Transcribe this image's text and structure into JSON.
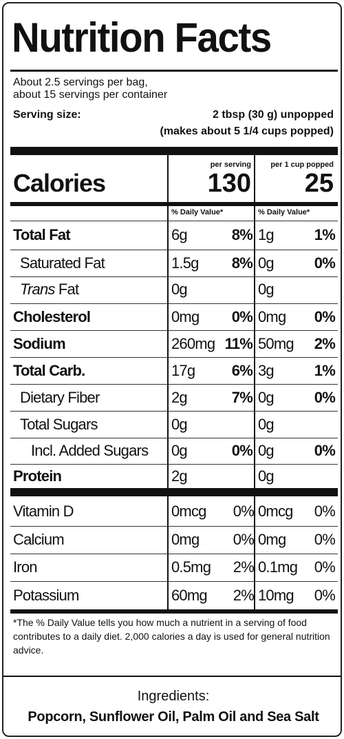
{
  "title": "Nutrition Facts",
  "servings_line1": "About 2.5 servings per bag,",
  "servings_line2": "about 15 servings per container",
  "serving_size_label": "Serving size:",
  "serving_size_value": "2 tbsp (30 g) unpopped",
  "serving_size_note": "(makes about 5 1/4 cups popped)",
  "calories": {
    "label": "Calories",
    "col1_head": "per serving",
    "col2_head": "per 1 cup popped",
    "col1_value": "130",
    "col2_value": "25",
    "dv_head1": "% Daily Value*",
    "dv_head2": "% Daily Value*"
  },
  "nutrients": [
    {
      "name": "Total Fat",
      "a": "6g",
      "ap": "8%",
      "b": "1g",
      "bp": "1%"
    },
    {
      "name": "Saturated Fat",
      "a": "1.5g",
      "ap": "8%",
      "b": "0g",
      "bp": "0%"
    },
    {
      "name_italic": "Trans",
      "name_rest": " Fat",
      "a": "0g",
      "ap": "",
      "b": "0g",
      "bp": ""
    },
    {
      "name": "Cholesterol",
      "a": "0mg",
      "ap": "0%",
      "b": "0mg",
      "bp": "0%"
    },
    {
      "name": "Sodium",
      "a": "260mg",
      "ap": "11%",
      "b": "50mg",
      "bp": "2%"
    },
    {
      "name": "Total Carb.",
      "a": "17g",
      "ap": "6%",
      "b": "3g",
      "bp": "1%"
    },
    {
      "name": "Dietary Fiber",
      "a": "2g",
      "ap": "7%",
      "b": "0g",
      "bp": "0%"
    },
    {
      "name": "Total Sugars",
      "a": "0g",
      "ap": "",
      "b": "0g",
      "bp": ""
    },
    {
      "name": "Incl. Added Sugars",
      "a": "0g",
      "ap": "0%",
      "b": "0g",
      "bp": "0%"
    },
    {
      "name": "Protein",
      "a": "2g",
      "ap": "",
      "b": "0g",
      "bp": ""
    }
  ],
  "vitamins": [
    {
      "name": "Vitamin D",
      "a": "0mcg",
      "ap": "0%",
      "b": "0mcg",
      "bp": "0%"
    },
    {
      "name": "Calcium",
      "a": "0mg",
      "ap": "0%",
      "b": "0mg",
      "bp": "0%"
    },
    {
      "name": "Iron",
      "a": "0.5mg",
      "ap": "2%",
      "b": "0.1mg",
      "bp": "0%"
    },
    {
      "name": "Potassium",
      "a": "60mg",
      "ap": "2%",
      "b": "10mg",
      "bp": "0%"
    }
  ],
  "footnote": "*The % Daily Value tells you how much a nutrient in a serving of food contributes to a daily diet. 2,000 calories a day is used for general nutrition advice.",
  "ingredients_title": "Ingredients:",
  "ingredients_list": "Popcorn, Sunflower Oil, Palm Oil and Sea Salt"
}
